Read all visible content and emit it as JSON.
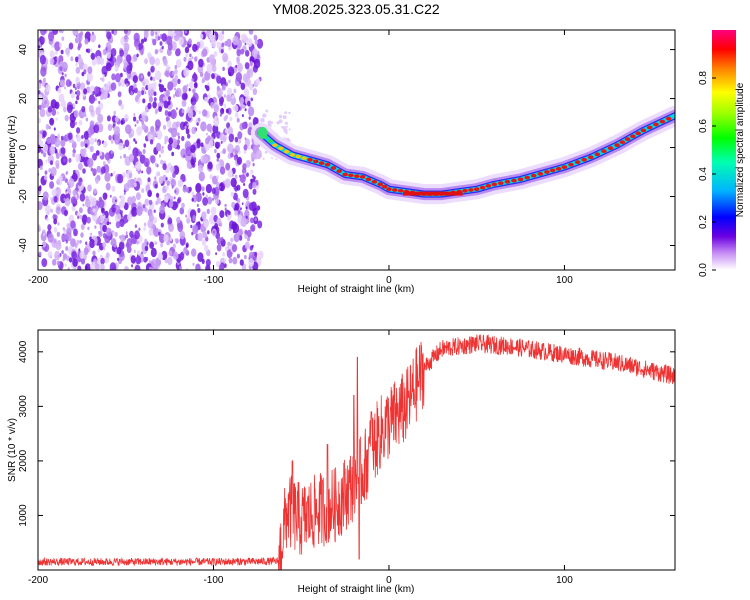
{
  "title": "YM08.2025.323.05.31.C22",
  "colors": {
    "snr_line": "#ee3333",
    "speckle": "#7a28e0",
    "axis": "#000000"
  },
  "chart_data": [
    {
      "type": "heatmap",
      "name": "spectrogram",
      "xlabel": "Height of straight line (km)",
      "ylabel": "Frequency (Hz)",
      "xlim": [
        -200,
        163
      ],
      "ylim": [
        -50,
        48
      ],
      "xticks": [
        -200,
        -100,
        0,
        100
      ],
      "yticks": [
        -40,
        -20,
        0,
        20,
        40
      ],
      "noise_region_x": [
        -200,
        -73
      ],
      "ridge": [
        {
          "x": -73,
          "y": 6
        },
        {
          "x": -65,
          "y": 1
        },
        {
          "x": -55,
          "y": -3
        },
        {
          "x": -45,
          "y": -5
        },
        {
          "x": -35,
          "y": -7
        },
        {
          "x": -25,
          "y": -11
        },
        {
          "x": -15,
          "y": -12
        },
        {
          "x": -5,
          "y": -15
        },
        {
          "x": 0,
          "y": -17
        },
        {
          "x": 10,
          "y": -18
        },
        {
          "x": 20,
          "y": -19
        },
        {
          "x": 30,
          "y": -19
        },
        {
          "x": 40,
          "y": -18
        },
        {
          "x": 50,
          "y": -17
        },
        {
          "x": 60,
          "y": -15
        },
        {
          "x": 75,
          "y": -13
        },
        {
          "x": 90,
          "y": -10
        },
        {
          "x": 100,
          "y": -8
        },
        {
          "x": 115,
          "y": -4
        },
        {
          "x": 130,
          "y": 1
        },
        {
          "x": 145,
          "y": 7
        },
        {
          "x": 163,
          "y": 13
        }
      ],
      "colorbar": {
        "label": "Normalized spectral amplitude",
        "range": [
          0,
          1
        ],
        "ticks": [
          "0.0",
          "0.2",
          "0.4",
          "0.6",
          "0.8"
        ]
      }
    },
    {
      "type": "line",
      "name": "snr",
      "xlabel": "Height of straight line (km)",
      "ylabel": "SNR (10 * v/v)",
      "xlim": [
        -200,
        163
      ],
      "ylim": [
        0,
        4400
      ],
      "xticks": [
        -200,
        -100,
        0,
        100
      ],
      "yticks": [
        1000,
        2000,
        3000,
        4000
      ],
      "series": [
        {
          "envelope": [
            {
              "x": -200,
              "y": 150
            },
            {
              "x": -150,
              "y": 150
            },
            {
              "x": -100,
              "y": 150
            },
            {
              "x": -63,
              "y": 160
            },
            {
              "x": -58,
              "y": 1100
            },
            {
              "x": -50,
              "y": 900
            },
            {
              "x": -40,
              "y": 1100
            },
            {
              "x": -30,
              "y": 1200
            },
            {
              "x": -20,
              "y": 1600
            },
            {
              "x": -15,
              "y": 1800
            },
            {
              "x": -10,
              "y": 2200
            },
            {
              "x": -5,
              "y": 2500
            },
            {
              "x": 0,
              "y": 2700
            },
            {
              "x": 10,
              "y": 3000
            },
            {
              "x": 20,
              "y": 3700
            },
            {
              "x": 30,
              "y": 4050
            },
            {
              "x": 50,
              "y": 4150
            },
            {
              "x": 70,
              "y": 4100
            },
            {
              "x": 90,
              "y": 4000
            },
            {
              "x": 110,
              "y": 3900
            },
            {
              "x": 130,
              "y": 3800
            },
            {
              "x": 150,
              "y": 3650
            },
            {
              "x": 163,
              "y": 3550
            }
          ],
          "spikes": [
            {
              "x": -18,
              "y": 3900
            },
            {
              "x": -17,
              "y": 200
            },
            {
              "x": -20,
              "y": 3200
            },
            {
              "x": -35,
              "y": 2300
            },
            {
              "x": -55,
              "y": 2000
            },
            {
              "x": -10,
              "y": 2900
            }
          ]
        }
      ]
    }
  ]
}
